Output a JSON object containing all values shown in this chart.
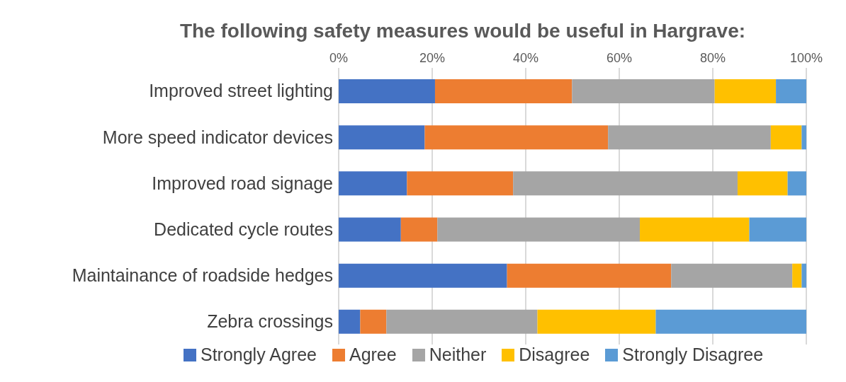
{
  "chart_data": {
    "type": "bar",
    "orientation": "horizontal",
    "stacked": true,
    "title": "The following safety measures would be useful in Hargrave:",
    "categories": [
      "Improved street lighting",
      "More speed indicator devices",
      "Improved road signage",
      "Dedicated cycle routes",
      "Maintainance of roadside hedges",
      "Zebra crossings"
    ],
    "series": [
      {
        "name": "Strongly Agree",
        "color": "#4472c4",
        "values": [
          20.6,
          18.4,
          14.6,
          13.3,
          36.0,
          4.6
        ]
      },
      {
        "name": "Agree",
        "color": "#ed7d31",
        "values": [
          29.3,
          39.2,
          22.7,
          7.8,
          35.1,
          5.6
        ]
      },
      {
        "name": "Neither",
        "color": "#a5a5a5",
        "values": [
          30.5,
          34.8,
          48.0,
          43.3,
          25.9,
          32.3
        ]
      },
      {
        "name": "Disagree",
        "color": "#ffc000",
        "values": [
          13.1,
          6.6,
          10.7,
          23.4,
          2.0,
          25.3
        ]
      },
      {
        "name": "Strongly Disagree",
        "color": "#5b9bd5",
        "values": [
          6.5,
          1.0,
          4.0,
          12.2,
          1.0,
          32.2
        ]
      }
    ],
    "xlim": [
      0,
      100
    ],
    "xticks": [
      {
        "value": 0,
        "label": "0%"
      },
      {
        "value": 20,
        "label": "20%"
      },
      {
        "value": 40,
        "label": "40%"
      },
      {
        "value": 60,
        "label": "60%"
      },
      {
        "value": 80,
        "label": "80%"
      },
      {
        "value": 100,
        "label": "100%"
      }
    ],
    "grid": "x",
    "legend": "bottom"
  }
}
